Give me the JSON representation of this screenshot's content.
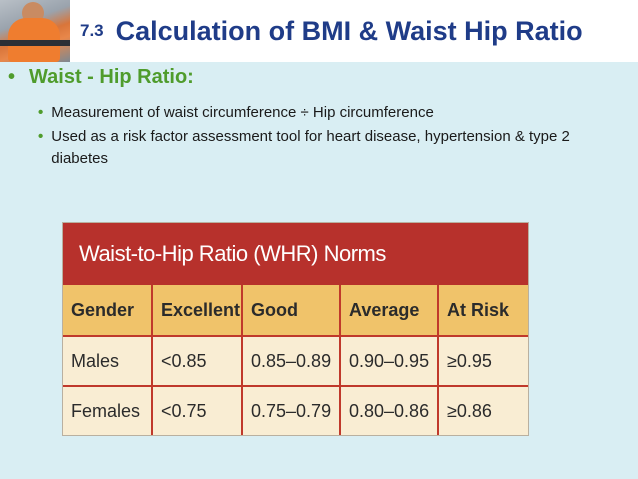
{
  "header": {
    "section_number": "7.3",
    "title": "Calculation of BMI & Waist Hip Ratio"
  },
  "main": {
    "bullet_heading": "Waist - Hip Ratio:",
    "sub_bullets": [
      "Measurement of waist circumference  ÷  Hip circumference",
      "Used as a risk factor assessment tool for heart disease, hypertension & type 2 diabetes"
    ]
  },
  "table": {
    "title": "Waist-to-Hip Ratio (WHR) Norms",
    "columns": [
      "Gender",
      "Excellent",
      "Good",
      "Average",
      "At Risk"
    ],
    "rows": [
      [
        "Males",
        "<0.85",
        "0.85–0.89",
        "0.90–0.95",
        "≥0.95"
      ],
      [
        "Females",
        "<0.75",
        "0.75–0.79",
        "0.80–0.86",
        "≥0.86"
      ]
    ]
  },
  "colors": {
    "title_blue": "#1f3c88",
    "heading_green": "#4f9c2c",
    "background": "#d9eef3",
    "table_red": "#b7312c",
    "table_header": "#f0c36a"
  }
}
